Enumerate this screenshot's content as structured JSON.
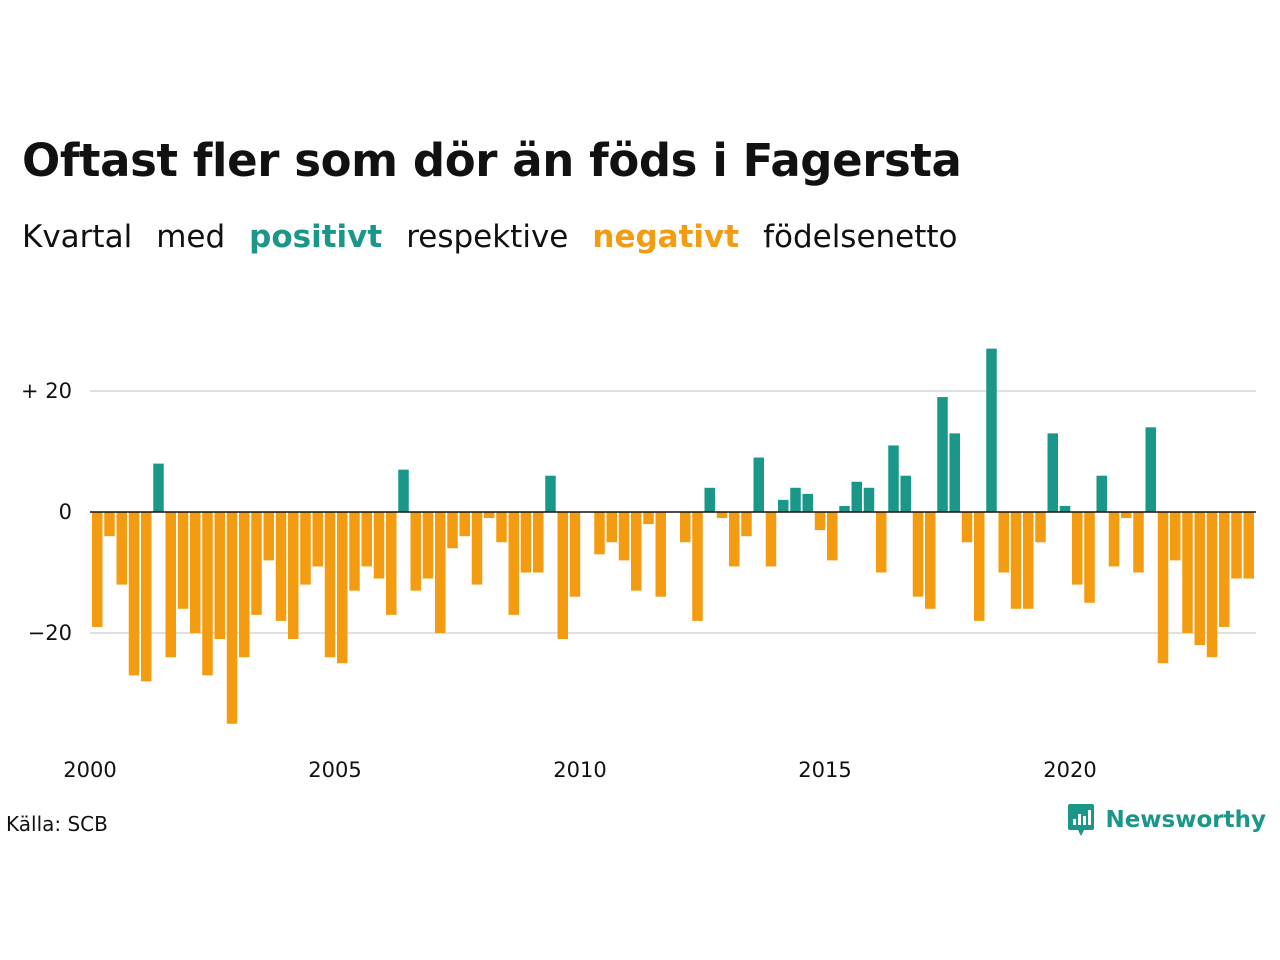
{
  "title": "Oftast fler som dör än föds i Fagersta",
  "subtitle": {
    "w1": "Kvartal",
    "w2": "med",
    "positive": "positivt",
    "w3": "respektive",
    "negative": "negativt",
    "w4": "födelsenetto"
  },
  "source": "Källa: SCB",
  "brand": {
    "name": "Newsworthy",
    "logo_icon": "newsworthy-logo-icon"
  },
  "colors": {
    "positive": "#1a9788",
    "negative": "#f39c12",
    "grid": "#e0e0e0",
    "zero": "#111111"
  },
  "chart_data": {
    "type": "bar",
    "x_tick_labels": [
      "2000",
      "2005",
      "2010",
      "2015",
      "2020"
    ],
    "y_tick_labels": [
      "+ 20",
      "0",
      "−20"
    ],
    "y_ticks": [
      20,
      0,
      -20
    ],
    "ylim": [
      -37,
      30
    ],
    "grid": true,
    "start_year": 2000,
    "values": [
      -19,
      -4,
      -12,
      -27,
      -28,
      8,
      -24,
      -16,
      -20,
      -27,
      -21,
      -35,
      -24,
      -17,
      -8,
      -18,
      -21,
      -12,
      -9,
      -24,
      -25,
      -13,
      -9,
      -11,
      -17,
      7,
      -13,
      -11,
      -20,
      -6,
      -4,
      -12,
      -1,
      -5,
      -17,
      -10,
      -10,
      6,
      -21,
      -14,
      0,
      -7,
      -5,
      -8,
      -13,
      -2,
      -14,
      0,
      -5,
      -18,
      4,
      -1,
      -9,
      -4,
      9,
      -9,
      2,
      4,
      3,
      -3,
      -8,
      1,
      5,
      4,
      -10,
      11,
      6,
      -14,
      -16,
      19,
      13,
      -5,
      -18,
      27,
      -10,
      -16,
      -16,
      -5,
      13,
      1,
      -12,
      -15,
      6,
      -9,
      -1,
      -10,
      14,
      -25,
      -8,
      -20,
      -22,
      -24,
      -19,
      -11,
      -11
    ]
  }
}
